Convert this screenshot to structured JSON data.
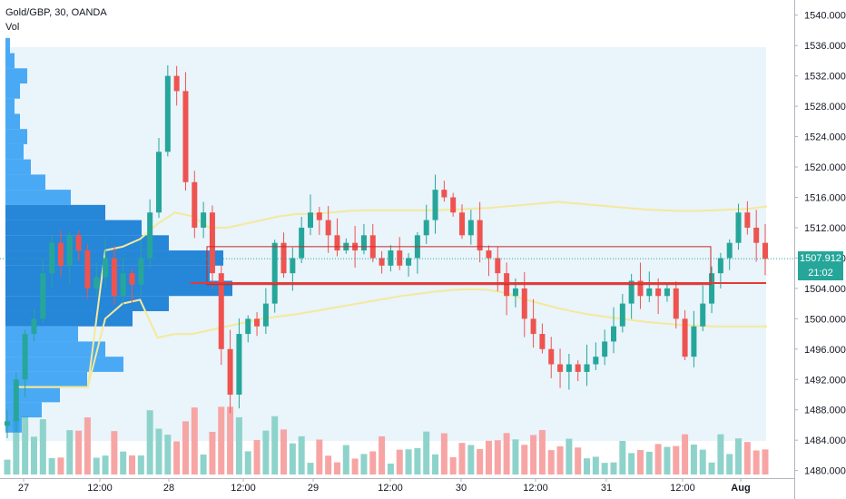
{
  "header": {
    "symbol": "Gold/GBP, 30, OANDA",
    "indicator": "Vol"
  },
  "price_tag": {
    "value": "1507.912",
    "countdown": "21:02",
    "color": "#26a69a"
  },
  "colors": {
    "up": "#26a69a",
    "down": "#ef5350",
    "vol_up": "#8ed3cb",
    "vol_down": "#f7a5a4",
    "profile": "#2196f3",
    "profile_value_area": "#1b7fd6",
    "poc_line": "#e53935",
    "band": "#f4e99b",
    "range_box": "#c62828",
    "shade": "#e9f4fb"
  },
  "chart_data": {
    "type": "candlestick",
    "title": "Gold/GBP, 30, OANDA",
    "y_axis": {
      "range": [
        1479,
        1542
      ],
      "ticks": [
        "1540.000",
        "1536.000",
        "1532.000",
        "1528.000",
        "1524.000",
        "1520.000",
        "1516.000",
        "1512.000",
        "1508.000",
        "1504.000",
        "1500.000",
        "1496.000",
        "1492.000",
        "1488.000",
        "1484.000",
        "1480.000"
      ]
    },
    "x_axis": {
      "labels": [
        "27",
        "12:00",
        "28",
        "12:00",
        "29",
        "12:00",
        "30",
        "12:00",
        "31",
        "12:00",
        "Aug"
      ]
    },
    "last_price": 1507.912,
    "poc_price": 1504.7,
    "grid": false,
    "close_series": [
      1486.5,
      1492.0,
      1498.0,
      1500.0,
      1506.0,
      1510.0,
      1507.0,
      1511.0,
      1509.0,
      1504.0,
      1505.5,
      1508.0,
      1503.0,
      1506.0,
      1504.5,
      1508.0,
      1514.0,
      1522.0,
      1532.0,
      1530.0,
      1518.0,
      1512.0,
      1514.0,
      1506.0,
      1496.0,
      1490.0,
      1498.0,
      1500.0,
      1499.0,
      1502.0,
      1510.0,
      1506.0,
      1508.0,
      1512.0,
      1514.0,
      1513.0,
      1511.0,
      1509.0,
      1510.0,
      1509.0,
      1511.0,
      1508.0,
      1507.0,
      1509.0,
      1507.0,
      1508.0,
      1511.0,
      1513.0,
      1517.0,
      1516.0,
      1514.0,
      1511.0,
      1513.0,
      1509.0,
      1508.0,
      1506.0,
      1503.0,
      1504.0,
      1500.0,
      1498.0,
      1496.0,
      1494.0,
      1493.0,
      1494.0,
      1493.0,
      1494.0,
      1495.0,
      1497.0,
      1499.0,
      1502.0,
      1505.0,
      1503.0,
      1504.0,
      1503.0,
      1504.0,
      1500.0,
      1495.0,
      1499.0,
      1502.0,
      1506.0,
      1508.0,
      1510.0,
      1514.0,
      1512.0,
      1510.0,
      1507.9
    ],
    "volume_profile": [
      {
        "price": 1536,
        "size": 5
      },
      {
        "price": 1534,
        "size": 10
      },
      {
        "price": 1532,
        "size": 24
      },
      {
        "price": 1530,
        "size": 16
      },
      {
        "price": 1528,
        "size": 10
      },
      {
        "price": 1526,
        "size": 16
      },
      {
        "price": 1524,
        "size": 24
      },
      {
        "price": 1522,
        "size": 20
      },
      {
        "price": 1520,
        "size": 28
      },
      {
        "price": 1518,
        "size": 44
      },
      {
        "price": 1516,
        "size": 72
      },
      {
        "price": 1514,
        "size": 110
      },
      {
        "price": 1512,
        "size": 150
      },
      {
        "price": 1510,
        "size": 180
      },
      {
        "price": 1508,
        "size": 240
      },
      {
        "price": 1506,
        "size": 225
      },
      {
        "price": 1504,
        "size": 250
      },
      {
        "price": 1502,
        "size": 180
      },
      {
        "price": 1500,
        "size": 140
      },
      {
        "price": 1498,
        "size": 80
      },
      {
        "price": 1496,
        "size": 110
      },
      {
        "price": 1494,
        "size": 130
      },
      {
        "price": 1492,
        "size": 90
      },
      {
        "price": 1490,
        "size": 60
      },
      {
        "price": 1488,
        "size": 40
      },
      {
        "price": 1486,
        "size": 18
      }
    ],
    "value_area": [
      1499,
      1514.5
    ],
    "upper_band": [
      1491.0,
      1491.0,
      1491.0,
      1491.0,
      1491.0,
      1509.0,
      1509.5,
      1510.5,
      1512.5,
      1514.0,
      1513.5,
      1512.0,
      1512.0,
      1512.5,
      1513.0,
      1513.5,
      1513.8,
      1513.8,
      1514.0,
      1514.2,
      1514.3,
      1514.3,
      1514.3,
      1514.3,
      1514.3,
      1514.4,
      1514.5,
      1514.6,
      1514.8,
      1515.0,
      1515.2,
      1515.4,
      1515.2,
      1515.0,
      1514.8,
      1514.6,
      1514.4,
      1514.3,
      1514.2,
      1514.2,
      1514.3,
      1514.4,
      1514.5,
      1514.8
    ],
    "lower_band": [
      1491.0,
      1491.0,
      1491.0,
      1491.0,
      1491.0,
      1500.0,
      1502.0,
      1502.5,
      1497.5,
      1498.0,
      1498.0,
      1498.5,
      1499.0,
      1499.5,
      1500.0,
      1500.3,
      1500.6,
      1501.0,
      1501.4,
      1501.8,
      1502.2,
      1502.6,
      1503.0,
      1503.3,
      1503.6,
      1503.8,
      1503.9,
      1503.8,
      1503.4,
      1502.6,
      1502.0,
      1501.4,
      1500.9,
      1500.5,
      1500.2,
      1499.9,
      1499.6,
      1499.4,
      1499.2,
      1499.1,
      1499.0,
      1499.0,
      1499.0,
      1499.0
    ]
  }
}
